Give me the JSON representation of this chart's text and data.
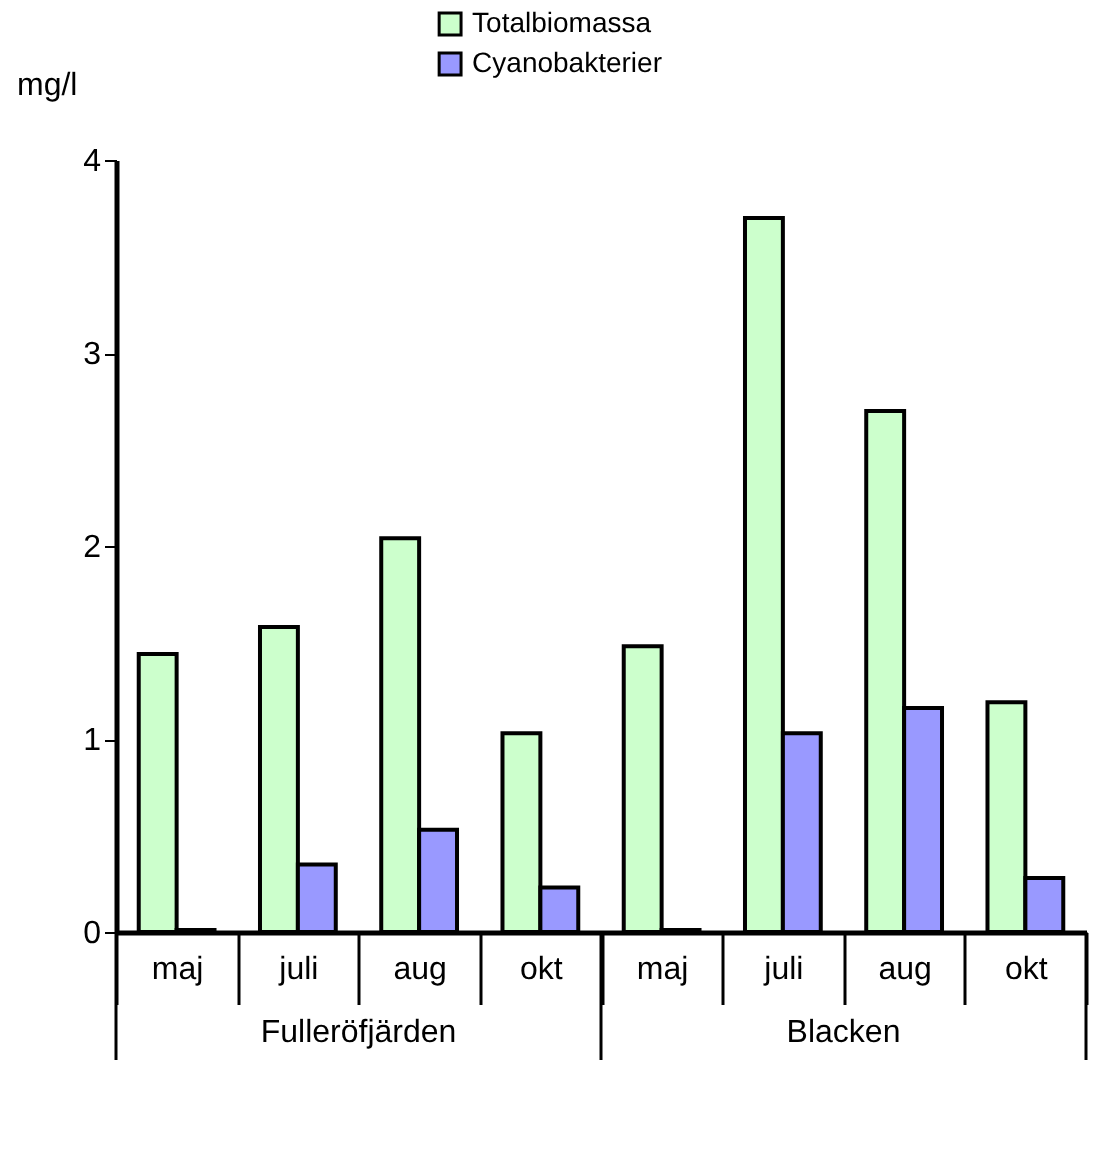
{
  "chart_data": {
    "type": "bar",
    "ylabel": "mg/l",
    "categories": [
      "maj",
      "juli",
      "aug",
      "okt",
      "maj",
      "juli",
      "aug",
      "okt"
    ],
    "series": [
      {
        "name": "Totalbiomassa",
        "color": "#ccffcc",
        "values": [
          1.44,
          1.58,
          2.04,
          1.03,
          1.48,
          3.7,
          2.7,
          1.19
        ]
      },
      {
        "name": "Cyanobakterier",
        "color": "#9999ff",
        "values": [
          0.01,
          0.35,
          0.53,
          0.23,
          0.01,
          1.03,
          1.16,
          0.28
        ]
      }
    ],
    "annotations": [
      "Fulleröfjärden",
      "Blacken"
    ],
    "ylim": [
      0,
      4
    ],
    "yticks": [
      0,
      1,
      2,
      3,
      4
    ],
    "grid": false,
    "legend": "top"
  }
}
